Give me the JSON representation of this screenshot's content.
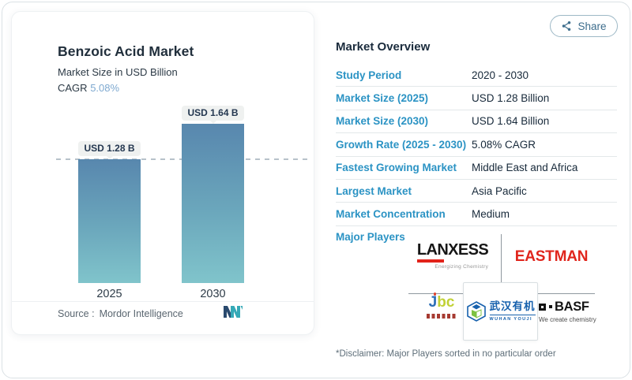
{
  "share": {
    "label": "Share"
  },
  "chart_card": {
    "title": "Benzoic Acid Market",
    "subtitle": "Market Size in USD Billion",
    "cagr_label": "CAGR",
    "cagr_value": "5.08%",
    "source_label": "Source :",
    "source_value": "Mordor Intelligence"
  },
  "chart_data": {
    "type": "bar",
    "title": "Benzoic Acid Market",
    "subtitle": "Market Size in USD Billion",
    "categories": [
      "2025",
      "2030"
    ],
    "values": [
      1.28,
      1.64
    ],
    "value_labels": [
      "USD 1.28 B",
      "USD 1.64 B"
    ],
    "unit": "USD Billion",
    "cagr": "5.08%",
    "reference_line_value": 1.28,
    "bar_gradient_top": "#5887ae",
    "bar_gradient_bottom": "#80c4cb",
    "grid": "off",
    "legend": "none"
  },
  "overview": {
    "title": "Market Overview",
    "rows": [
      {
        "label": "Study Period",
        "value": "2020 - 2030"
      },
      {
        "label": "Market Size (2025)",
        "value": "USD 1.28 Billion"
      },
      {
        "label": "Market Size (2030)",
        "value": "USD 1.64 Billion"
      },
      {
        "label": "Growth Rate (2025 - 2030)",
        "value": "5.08% CAGR"
      },
      {
        "label": "Fastest Growing Market",
        "value": "Middle East and Africa"
      },
      {
        "label": "Largest Market",
        "value": "Asia Pacific"
      },
      {
        "label": "Market Concentration",
        "value": "Medium"
      }
    ],
    "major_players_label": "Major Players",
    "disclaimer": "*Disclaimer: Major Players sorted in no particular order"
  },
  "logos": {
    "lanxess": {
      "text": "LANXESS",
      "tagline": "Energizing Chemistry"
    },
    "eastman": {
      "text": "EASTMAN"
    },
    "jbc": {
      "text_j": "J",
      "text_bc": "bc"
    },
    "wuhan": {
      "cn": "武汉有机",
      "en": "WUHAN  YOUJI"
    },
    "basf": {
      "text": "BASF",
      "tagline": "We create chemistry"
    }
  },
  "colors": {
    "accent_blue": "#2b93c4",
    "dark_navy": "#17293a",
    "share_teal": "#3d6d8c",
    "cagr_blue": "#7ea9d0",
    "eastman_red": "#e0251c",
    "lanxess_red": "#e2231a",
    "wuhan_blue": "#1761ad",
    "wuhan_green": "#7dc242"
  }
}
